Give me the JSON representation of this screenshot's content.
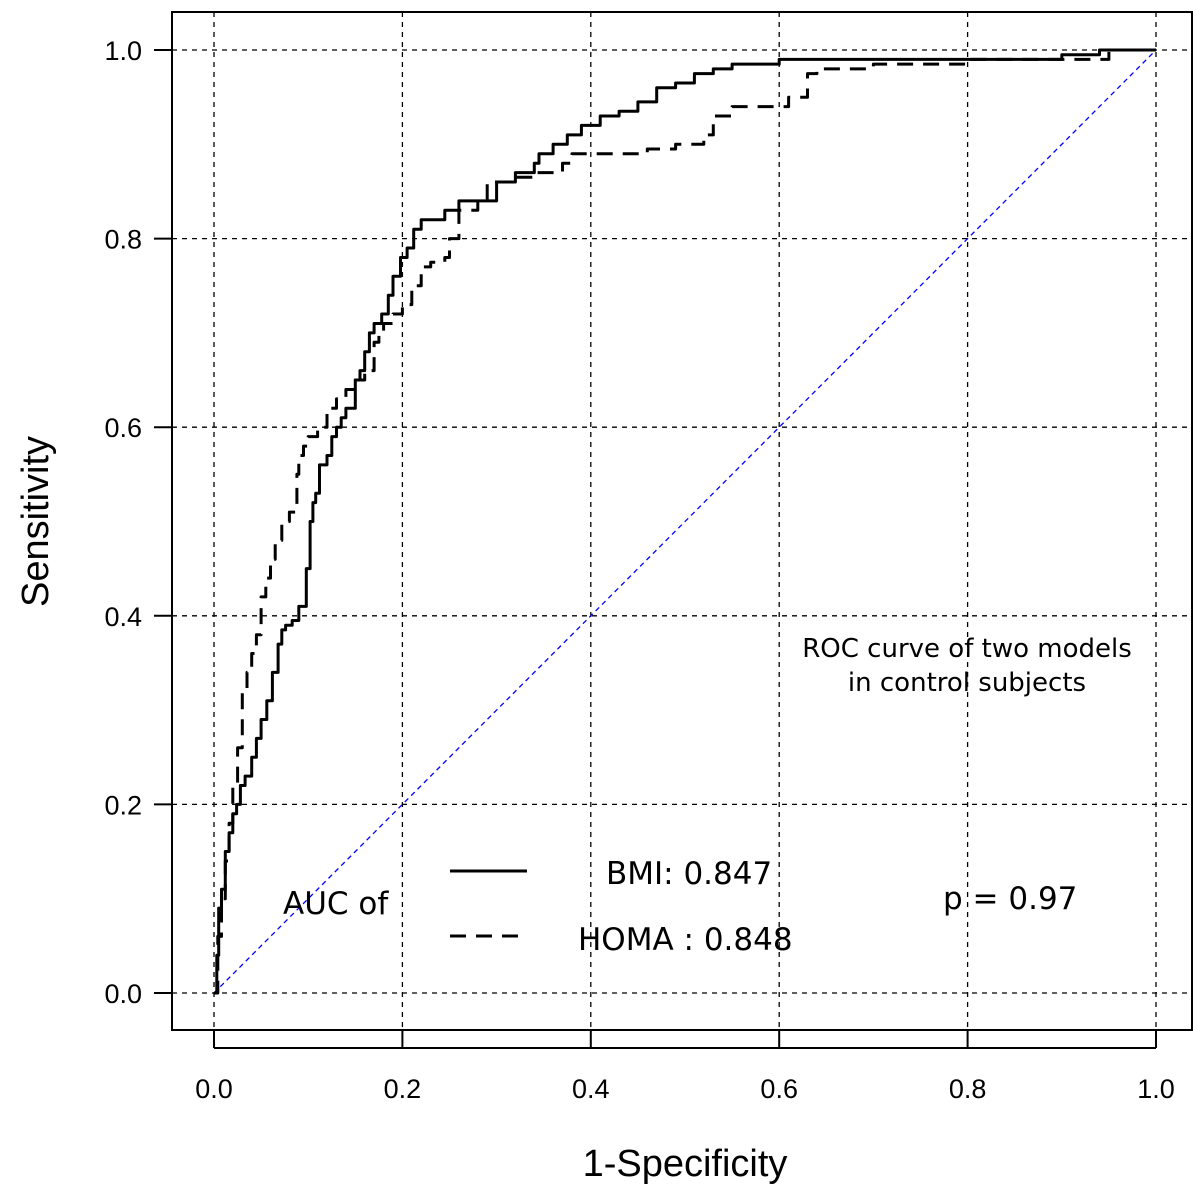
{
  "chart_data": {
    "type": "line",
    "title": "",
    "xlabel": "1-Specificity",
    "ylabel": "Sensitivity",
    "xlim": [
      0.0,
      1.0
    ],
    "ylim": [
      0.0,
      1.0
    ],
    "x_ticks": [
      "0.0",
      "0.2",
      "0.4",
      "0.6",
      "0.8",
      "1.0"
    ],
    "y_ticks": [
      "0.0",
      "0.2",
      "0.4",
      "0.6",
      "0.8",
      "1.0"
    ],
    "grid": true,
    "annotations": {
      "subtitle_line1": "ROC curve of two models",
      "subtitle_line2": "in control subjects",
      "auc_label": "AUC of",
      "p_value": "p = 0.97"
    },
    "legend_position": "bottom-center",
    "reference_line": {
      "x": [
        0,
        1
      ],
      "y": [
        0,
        1
      ],
      "color": "#0000ff"
    },
    "series": [
      {
        "name": "BMI: 0.847",
        "style": "solid",
        "color": "#000000",
        "x": [
          0.0,
          0.003,
          0.005,
          0.008,
          0.012,
          0.016,
          0.02,
          0.024,
          0.028,
          0.033,
          0.04,
          0.045,
          0.05,
          0.056,
          0.062,
          0.068,
          0.072,
          0.076,
          0.083,
          0.09,
          0.098,
          0.102,
          0.105,
          0.108,
          0.112,
          0.12,
          0.125,
          0.13,
          0.135,
          0.14,
          0.15,
          0.155,
          0.16,
          0.165,
          0.17,
          0.178,
          0.185,
          0.19,
          0.198,
          0.205,
          0.212,
          0.22,
          0.23,
          0.245,
          0.26,
          0.275,
          0.3,
          0.32,
          0.34,
          0.345,
          0.36,
          0.375,
          0.39,
          0.41,
          0.43,
          0.45,
          0.47,
          0.49,
          0.51,
          0.53,
          0.55,
          0.6,
          0.7,
          0.8,
          0.9,
          0.94,
          0.97,
          1.0
        ],
        "y": [
          0.0,
          0.04,
          0.09,
          0.11,
          0.15,
          0.17,
          0.19,
          0.2,
          0.22,
          0.23,
          0.25,
          0.27,
          0.29,
          0.31,
          0.34,
          0.37,
          0.385,
          0.39,
          0.395,
          0.41,
          0.45,
          0.5,
          0.52,
          0.53,
          0.56,
          0.57,
          0.59,
          0.6,
          0.61,
          0.62,
          0.65,
          0.66,
          0.68,
          0.7,
          0.71,
          0.72,
          0.74,
          0.76,
          0.78,
          0.79,
          0.81,
          0.82,
          0.82,
          0.83,
          0.84,
          0.84,
          0.86,
          0.87,
          0.88,
          0.89,
          0.9,
          0.91,
          0.92,
          0.93,
          0.935,
          0.945,
          0.96,
          0.965,
          0.975,
          0.98,
          0.985,
          0.99,
          0.99,
          0.99,
          0.995,
          1.0,
          1.0,
          1.0
        ]
      },
      {
        "name": "HOMA : 0.848",
        "style": "dashed",
        "color": "#000000",
        "x": [
          0.0,
          0.004,
          0.008,
          0.012,
          0.016,
          0.02,
          0.025,
          0.03,
          0.035,
          0.04,
          0.045,
          0.05,
          0.055,
          0.06,
          0.065,
          0.072,
          0.08,
          0.088,
          0.09,
          0.095,
          0.1,
          0.11,
          0.12,
          0.13,
          0.14,
          0.15,
          0.16,
          0.17,
          0.175,
          0.18,
          0.19,
          0.2,
          0.21,
          0.22,
          0.23,
          0.245,
          0.25,
          0.26,
          0.28,
          0.29,
          0.3,
          0.32,
          0.34,
          0.36,
          0.37,
          0.38,
          0.4,
          0.43,
          0.46,
          0.49,
          0.52,
          0.53,
          0.55,
          0.58,
          0.61,
          0.63,
          0.64,
          0.7,
          0.8,
          0.9,
          0.95,
          1.0
        ],
        "y": [
          0.0,
          0.06,
          0.1,
          0.14,
          0.18,
          0.22,
          0.26,
          0.32,
          0.34,
          0.36,
          0.38,
          0.42,
          0.44,
          0.46,
          0.48,
          0.5,
          0.51,
          0.55,
          0.57,
          0.58,
          0.59,
          0.6,
          0.62,
          0.63,
          0.64,
          0.65,
          0.66,
          0.69,
          0.7,
          0.71,
          0.72,
          0.73,
          0.75,
          0.77,
          0.775,
          0.78,
          0.8,
          0.83,
          0.84,
          0.86,
          0.86,
          0.865,
          0.87,
          0.87,
          0.88,
          0.89,
          0.89,
          0.89,
          0.895,
          0.9,
          0.91,
          0.93,
          0.94,
          0.94,
          0.95,
          0.975,
          0.98,
          0.985,
          0.99,
          0.99,
          1.0,
          1.0
        ]
      }
    ]
  }
}
